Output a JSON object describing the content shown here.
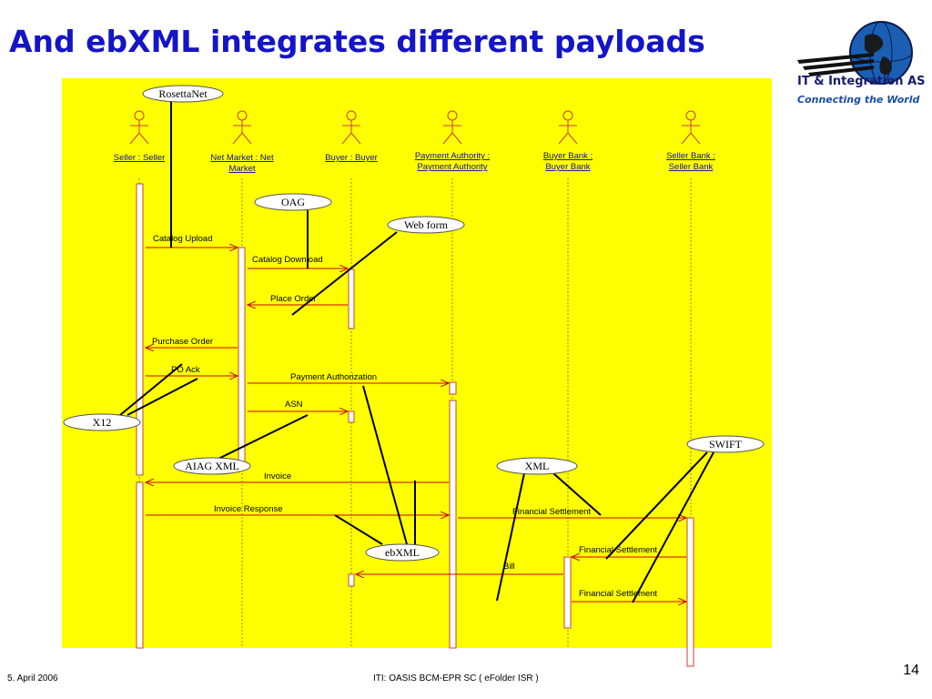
{
  "title": "And ebXML integrates different payloads",
  "logo": {
    "name": "IT & Integration AS",
    "tagline": "Connecting the World",
    "icon": "globe-icon"
  },
  "colors": {
    "title": "#1414c8",
    "background": "#ffff00",
    "message": "#cc0000",
    "callout_line": "#000000"
  },
  "actors": [
    {
      "label_lines": [
        "Seller : Seller"
      ]
    },
    {
      "label_lines": [
        "Net Market : Net",
        "Market"
      ]
    },
    {
      "label_lines": [
        "Buyer : Buyer"
      ]
    },
    {
      "label_lines": [
        "Payment Authority :",
        "Payment Authority"
      ]
    },
    {
      "label_lines": [
        "Buyer Bank :",
        "Buyer Bank"
      ]
    },
    {
      "label_lines": [
        "Seller Bank :",
        "Seller Bank"
      ]
    }
  ],
  "messages": [
    "Catalog Upload",
    "Catalog Download",
    "Place Order",
    "Purchase Order",
    "PO Ack",
    "Payment Authorization",
    "ASN",
    "Invoice",
    "Invoice Response",
    "Financial Settlement",
    "Financial Settlement",
    "Bill",
    "Financial Settlement"
  ],
  "callouts": [
    "RosettaNet",
    "OAG",
    "Web form",
    "X12",
    "AIAG XML",
    "XML",
    "SWIFT",
    "ebXML"
  ],
  "footer": {
    "date": "5. April 2006",
    "center": "ITI: OASIS BCM-EPR SC ( eFolder ISR )",
    "page": "14"
  }
}
